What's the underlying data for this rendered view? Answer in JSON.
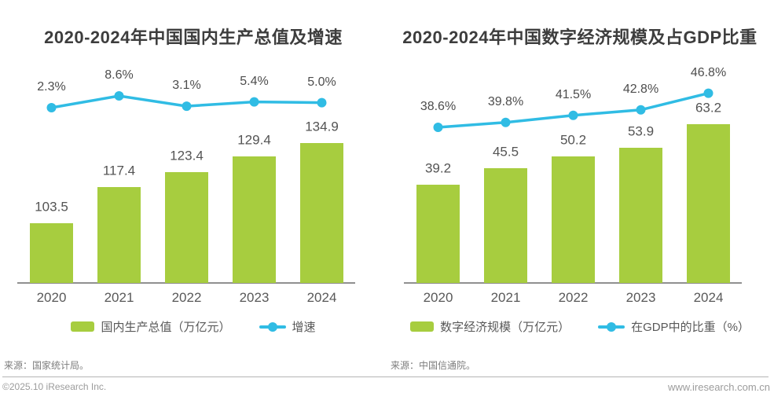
{
  "page": {
    "footer": {
      "copyright": "©2025.10 iResearch Inc.",
      "website": "www.iresearch.com.cn"
    }
  },
  "colors": {
    "bar": "#a7cd3f",
    "line": "#30bce4",
    "title": "#3d3d3d",
    "text": "#595959",
    "source": "#7d7d7d",
    "footer": "#9c9c9c",
    "axis": "#909090",
    "divider": "#b5b5b5"
  },
  "chart_data": [
    {
      "type": "bar+line",
      "title": "2020-2024年中国国内生产总值及增速",
      "categories": [
        "2020",
        "2021",
        "2022",
        "2023",
        "2024"
      ],
      "series": [
        {
          "name": "国内生产总值（万亿元）",
          "type": "bar",
          "values": [
            103.5,
            117.4,
            123.4,
            129.4,
            134.9
          ],
          "labels": [
            "103.5",
            "117.4",
            "123.4",
            "129.4",
            "134.9"
          ]
        },
        {
          "name": "增速",
          "type": "line",
          "unit": "%",
          "values": [
            2.3,
            8.6,
            3.1,
            5.4,
            5.0
          ],
          "labels": [
            "2.3%",
            "8.6%",
            "3.1%",
            "5.4%",
            "5.0%"
          ]
        }
      ],
      "bar_axis_range": [
        80,
        145
      ],
      "grid": false,
      "legend_position": "bottom",
      "source": "来源：国家统计局。"
    },
    {
      "type": "bar+line",
      "title": "2020-2024年中国数字经济规模及占GDP比重",
      "categories": [
        "2020",
        "2021",
        "2022",
        "2023",
        "2024"
      ],
      "series": [
        {
          "name": "数字经济规模（万亿元）",
          "type": "bar",
          "values": [
            39.2,
            45.5,
            50.2,
            53.9,
            63.2
          ],
          "labels": [
            "39.2",
            "45.5",
            "50.2",
            "53.9",
            "63.2"
          ]
        },
        {
          "name": "在GDP中的比重（%）",
          "type": "line",
          "unit": "%",
          "values": [
            38.6,
            39.8,
            41.5,
            42.8,
            46.8
          ],
          "labels": [
            "38.6%",
            "39.8%",
            "41.5%",
            "42.8%",
            "46.8%"
          ]
        }
      ],
      "bar_axis_range": [
        0,
        70
      ],
      "grid": false,
      "legend_position": "bottom",
      "source": "来源：中国信通院。"
    }
  ]
}
